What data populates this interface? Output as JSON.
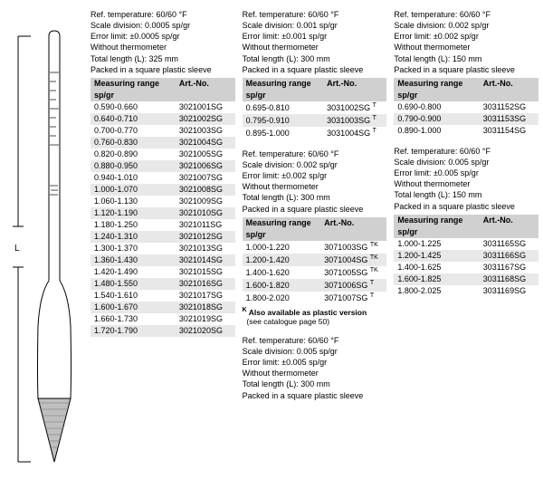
{
  "headers": {
    "col1": "Measuring range",
    "col1b": "sp/gr",
    "col2": "Art.-No."
  },
  "blocks": [
    {
      "col": 0,
      "specs": [
        "Ref. temperature: 60/60 °F",
        "Scale division: 0.0005 sp/gr",
        "Error limit: ±0.0005 sp/gr",
        "Without thermometer",
        "Total length (L): 325 mm",
        "Packed in a square plastic sleeve"
      ],
      "rows": [
        [
          "0.590-0.660",
          "3021001SG"
        ],
        [
          "0.640-0.710",
          "3021002SG"
        ],
        [
          "0.700-0.770",
          "3021003SG"
        ],
        [
          "0.760-0.830",
          "3021004SG"
        ],
        [
          "0.820-0.890",
          "3021005SG"
        ],
        [
          "0.880-0.950",
          "3021006SG"
        ],
        [
          "0.940-1.010",
          "3021007SG"
        ],
        [
          "1.000-1.070",
          "3021008SG"
        ],
        [
          "1.060-1.130",
          "3021009SG"
        ],
        [
          "1.120-1.190",
          "3021010SG"
        ],
        [
          "1.180-1.250",
          "3021011SG"
        ],
        [
          "1.240-1.310",
          "3021012SG"
        ],
        [
          "1.300-1.370",
          "3021013SG"
        ],
        [
          "1.360-1.430",
          "3021014SG"
        ],
        [
          "1.420-1.490",
          "3021015SG"
        ],
        [
          "1.480-1.550",
          "3021016SG"
        ],
        [
          "1.540-1.610",
          "3021017SG"
        ],
        [
          "1.600-1.670",
          "3021018SG"
        ],
        [
          "1.660-1.730",
          "3021019SG"
        ],
        [
          "1.720-1.790",
          "3021020SG"
        ]
      ]
    },
    {
      "col": 1,
      "specs": [
        "Ref. temperature: 60/60 °F",
        "Scale division: 0.001 sp/gr",
        "Error limit: ±0.001 sp/gr",
        "Without thermometer",
        "Total length (L): 300 mm",
        "Packed in a square plastic sleeve"
      ],
      "rows": [
        [
          "0.695-0.810",
          "3031002SG",
          "T"
        ],
        [
          "0.795-0.910",
          "3031003SG",
          "T"
        ],
        [
          "0.895-1.000",
          "3031004SG",
          "T"
        ]
      ]
    },
    {
      "col": 1,
      "specs": [
        "Ref. temperature: 60/60 °F",
        "Scale division: 0.002 sp/gr",
        "Error limit: ±0.002 sp/gr",
        "Without thermometer",
        "Total length (L): 300 mm",
        "Packed in a square plastic sleeve"
      ],
      "rows": [
        [
          "1.000-1.220",
          "3071003SG",
          "TK"
        ],
        [
          "1.200-1.420",
          "3071004SG",
          "TK"
        ],
        [
          "1.400-1.620",
          "3071005SG",
          "TK"
        ],
        [
          "1.600-1.820",
          "3071006SG",
          "T"
        ],
        [
          "1.800-2.020",
          "3071007SG",
          "T"
        ]
      ],
      "note_bold": "K",
      "note": "Also available as plastic version",
      "note2": "(see catalogue page 50)"
    },
    {
      "col": 1,
      "specs": [
        "Ref. temperature: 60/60 °F",
        "Scale division: 0.005 sp/gr",
        "Error limit: ±0.005 sp/gr",
        "Without thermometer",
        "Total length (L): 300 mm",
        "Packed in a square plastic sleeve"
      ]
    },
    {
      "col": 2,
      "specs": [
        "Ref. temperature: 60/60 °F",
        "Scale division: 0.002 sp/gr",
        "Error limit: ±0.002 sp/gr",
        "Without thermometer",
        "Total length (L): 150 mm",
        "Packed in a square plastic sleeve"
      ],
      "rows": [
        [
          "0.690-0.800",
          "3031152SG"
        ],
        [
          "0.790-0.900",
          "3031153SG"
        ],
        [
          "0.890-1.000",
          "3031154SG"
        ]
      ]
    },
    {
      "col": 2,
      "specs": [
        "Ref. temperature: 60/60 °F",
        "Scale division: 0.005 sp/gr",
        "Error limit: ±0.005 sp/gr",
        "Without thermometer",
        "Total length (L): 150 mm",
        "Packed in a square plastic sleeve"
      ],
      "rows": [
        [
          "1.000-1.225",
          "3031165SG"
        ],
        [
          "1.200-1.425",
          "3031166SG"
        ],
        [
          "1.400-1.625",
          "3031167SG"
        ],
        [
          "1.600-1.825",
          "3031168SG"
        ],
        [
          "1.800-2.025",
          "3031169SG"
        ]
      ]
    }
  ]
}
